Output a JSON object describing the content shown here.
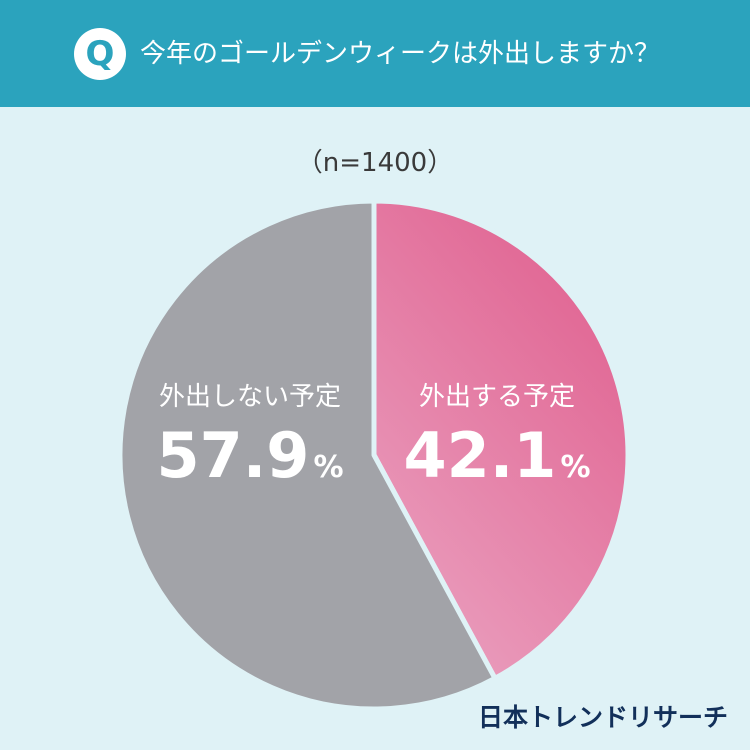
{
  "header": {
    "badge": "Q",
    "question": "今年のゴールデンウィークは外出しますか？"
  },
  "sample_label": "（n=1400）",
  "brand": "日本トレンドリサーチ",
  "colors": {
    "header_bg": "#2ba3bd",
    "page_bg": "#dff2f6",
    "slice_go": "#e0608f",
    "slice_stay": "#a2a3a8",
    "brand_text": "#12305a"
  },
  "chart_data": {
    "type": "pie",
    "title": "",
    "slices": [
      {
        "label": "外出する予定",
        "value": 42.1,
        "value_text": "42.1",
        "unit": "%",
        "color": "#e0608f"
      },
      {
        "label": "外出しない予定",
        "value": 57.9,
        "value_text": "57.9",
        "unit": "%",
        "color": "#a2a3a8"
      }
    ],
    "start": "top",
    "direction": "clockwise",
    "legend": "none"
  }
}
